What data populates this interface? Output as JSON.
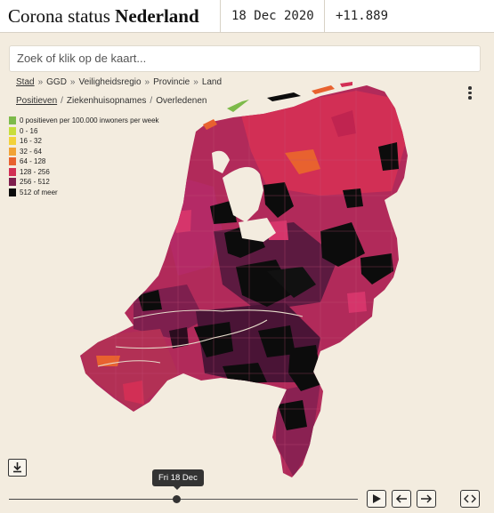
{
  "header": {
    "title_plain": "Corona status",
    "title_bold": "Nederland",
    "date": "18 Dec 2020",
    "count": "+11.889"
  },
  "search": {
    "placeholder": "Zoek of klik op de kaart..."
  },
  "breadcrumb": {
    "items": [
      "Stad",
      "GGD",
      "Veiligheidsregio",
      "Provincie",
      "Land"
    ],
    "separator": "»"
  },
  "metrics": {
    "items": [
      "Positieven",
      "Ziekenhuisopnames",
      "Overledenen"
    ],
    "separator": "/"
  },
  "legend": [
    {
      "label": "0 positieven per 100.000 inwoners per week",
      "color": "#7dba4a"
    },
    {
      "label": "0 - 16",
      "color": "#c8dd3a"
    },
    {
      "label": "16 - 32",
      "color": "#f2d23a"
    },
    {
      "label": "32 - 64",
      "color": "#f1a336"
    },
    {
      "label": "64 - 128",
      "color": "#e8622f"
    },
    {
      "label": "128 - 256",
      "color": "#d22f55"
    },
    {
      "label": "256 - 512",
      "color": "#7e1f4e"
    },
    {
      "label": "512 of meer",
      "color": "#0c0c0c"
    }
  ],
  "timeline": {
    "tooltip": "Fri 18 Dec",
    "position_fraction": 0.48
  },
  "icons": {
    "download": "download-icon",
    "play": "play-icon",
    "back": "arrow-left-icon",
    "forward": "arrow-right-icon",
    "embed": "code-icon",
    "menu": "kebab-menu-icon"
  }
}
